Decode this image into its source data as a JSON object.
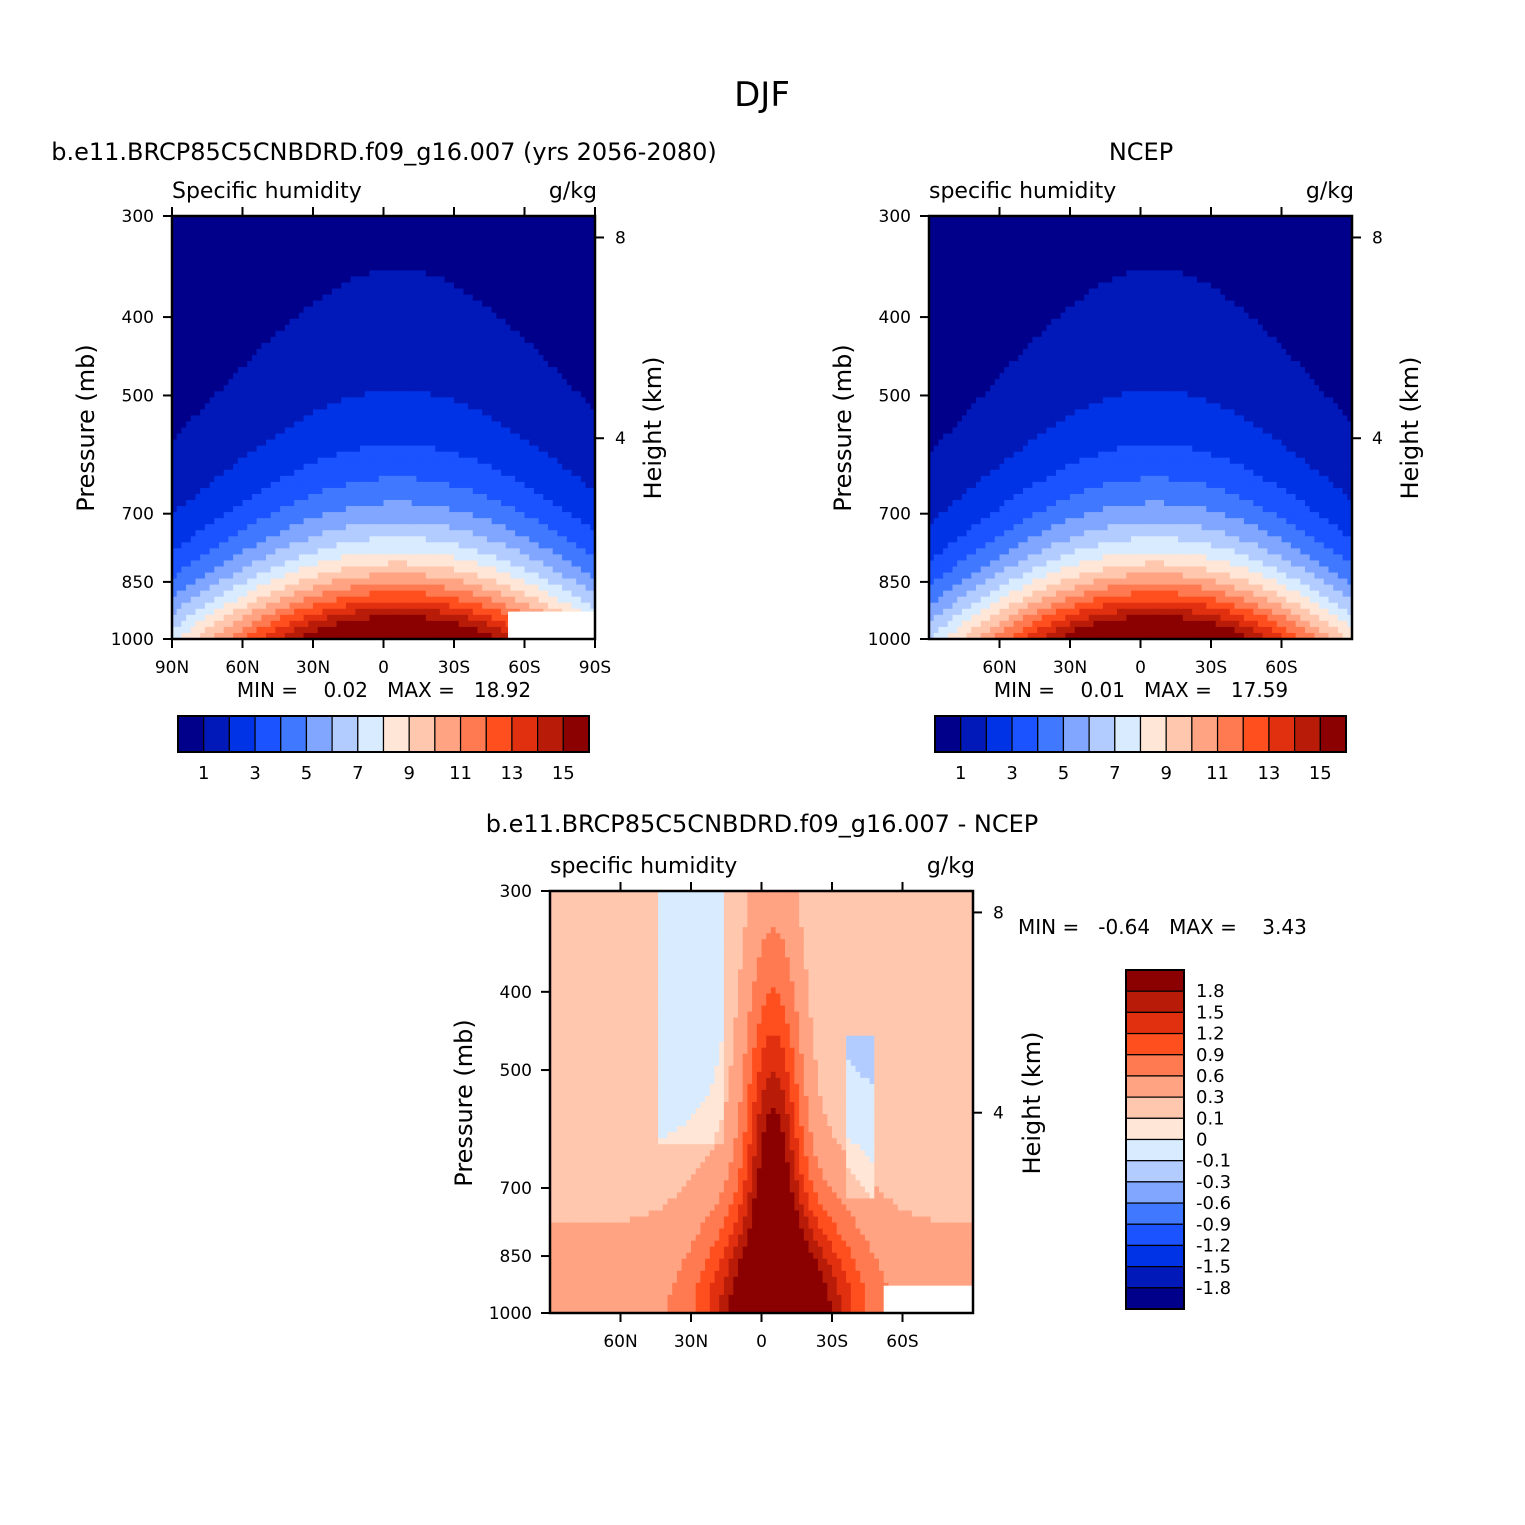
{
  "figure": {
    "title": "DJF"
  },
  "palettes": {
    "abs": [
      "#00008b",
      "#0019b8",
      "#0033e6",
      "#1a53ff",
      "#4079ff",
      "#80a6ff",
      "#b3ccff",
      "#d9ebff",
      "#ffe6d6",
      "#ffc7ad",
      "#ffa382",
      "#ff7a50",
      "#ff4f1f",
      "#e03010",
      "#b81c08",
      "#8b0000"
    ],
    "diff": [
      "#00008b",
      "#0019b8",
      "#0033e6",
      "#1a53ff",
      "#4079ff",
      "#80a6ff",
      "#b3ccff",
      "#d9ebff",
      "#ffe6d6",
      "#ffc7ad",
      "#ffa382",
      "#ff7a50",
      "#ff4f1f",
      "#e03010",
      "#b81c08",
      "#8b0000"
    ]
  },
  "chart_data": [
    {
      "type": "heatmap",
      "title": "b.e11.BRCP85C5CNBDRD.f09_g16.007 (yrs 2056-2080)",
      "left_label": "Specific humidity",
      "right_label": "g/kg",
      "ylabel": "Pressure (mb)",
      "y2label": "Height (km)",
      "x_ticks": [
        "90N",
        "60N",
        "30N",
        "0",
        "30S",
        "60S",
        "90S"
      ],
      "x_tick_values": [
        -90,
        -60,
        -30,
        0,
        30,
        60,
        90
      ],
      "y_ticks": [
        "300",
        "400",
        "500",
        "700",
        "850",
        "1000"
      ],
      "y_tick_values": [
        300,
        400,
        500,
        700,
        850,
        1000
      ],
      "y2_ticks": [
        "8",
        "4"
      ],
      "y2_tick_values": [
        8,
        4
      ],
      "xlim": [
        -90,
        90
      ],
      "ylim": [
        1000,
        300
      ],
      "stats": "MIN =    0.02   MAX =   18.92",
      "peak_lat": 6,
      "peak_width": 40,
      "top_spread": 0.55,
      "top_width": 65,
      "levels": [
        1,
        2,
        3,
        4,
        5,
        6,
        7,
        8,
        9,
        10,
        11,
        12,
        13,
        14,
        15
      ],
      "colorbar_labels": [
        "1",
        "3",
        "5",
        "7",
        "9",
        "11",
        "13",
        "15"
      ],
      "missing_box": {
        "lat": [
          53,
          90
        ],
        "p": [
          925,
          1000
        ]
      }
    },
    {
      "type": "heatmap",
      "title": "NCEP",
      "left_label": "specific humidity",
      "right_label": "g/kg",
      "ylabel": "Pressure (mb)",
      "y2label": "Height (km)",
      "x_ticks": [
        "60N",
        "30N",
        "0",
        "30S",
        "60S"
      ],
      "x_tick_values": [
        -60,
        -30,
        0,
        30,
        60
      ],
      "y_ticks": [
        "300",
        "400",
        "500",
        "700",
        "850",
        "1000"
      ],
      "y_tick_values": [
        300,
        400,
        500,
        700,
        850,
        1000
      ],
      "y2_ticks": [
        "8",
        "4"
      ],
      "y2_tick_values": [
        8,
        4
      ],
      "xlim": [
        -90,
        90
      ],
      "ylim": [
        1000,
        300
      ],
      "stats": "MIN =    0.01   MAX =   17.59",
      "peak_lat": 6,
      "peak_width": 38,
      "top_spread": 0.52,
      "top_width": 60,
      "levels": [
        1,
        2,
        3,
        4,
        5,
        6,
        7,
        8,
        9,
        10,
        11,
        12,
        13,
        14,
        15
      ],
      "colorbar_labels": [
        "1",
        "3",
        "5",
        "7",
        "9",
        "11",
        "13",
        "15"
      ]
    },
    {
      "type": "heatmap",
      "title": "b.e11.BRCP85C5CNBDRD.f09_g16.007 - NCEP",
      "left_label": "specific humidity",
      "right_label": "g/kg",
      "ylabel": "Pressure (mb)",
      "y2label": "Height (km)",
      "x_ticks": [
        "60N",
        "30N",
        "0",
        "30S",
        "60S"
      ],
      "x_tick_values": [
        -60,
        -30,
        0,
        30,
        60
      ],
      "y_ticks": [
        "300",
        "400",
        "500",
        "700",
        "850",
        "1000"
      ],
      "y_tick_values": [
        300,
        400,
        500,
        700,
        850,
        1000
      ],
      "y2_ticks": [
        "8",
        "4"
      ],
      "y2_tick_values": [
        8,
        4
      ],
      "xlim": [
        -90,
        90
      ],
      "ylim": [
        1000,
        300
      ],
      "stats": "MIN =   -0.64   MAX =    3.43",
      "levels": [
        -1.8,
        -1.5,
        -1.2,
        -0.9,
        -0.6,
        -0.3,
        -0.1,
        0,
        0.1,
        0.3,
        0.6,
        0.9,
        1.2,
        1.5,
        1.8
      ],
      "colorbar_labels": [
        "1.8",
        "1.5",
        "1.2",
        "0.9",
        "0.6",
        "0.3",
        "0.1",
        "0",
        "-0.1",
        "-0.3",
        "-0.6",
        "-0.9",
        "-1.2",
        "-1.5",
        "-1.8"
      ],
      "missing_box": {
        "lat": [
          52,
          90
        ],
        "p": [
          925,
          1000
        ]
      }
    }
  ]
}
